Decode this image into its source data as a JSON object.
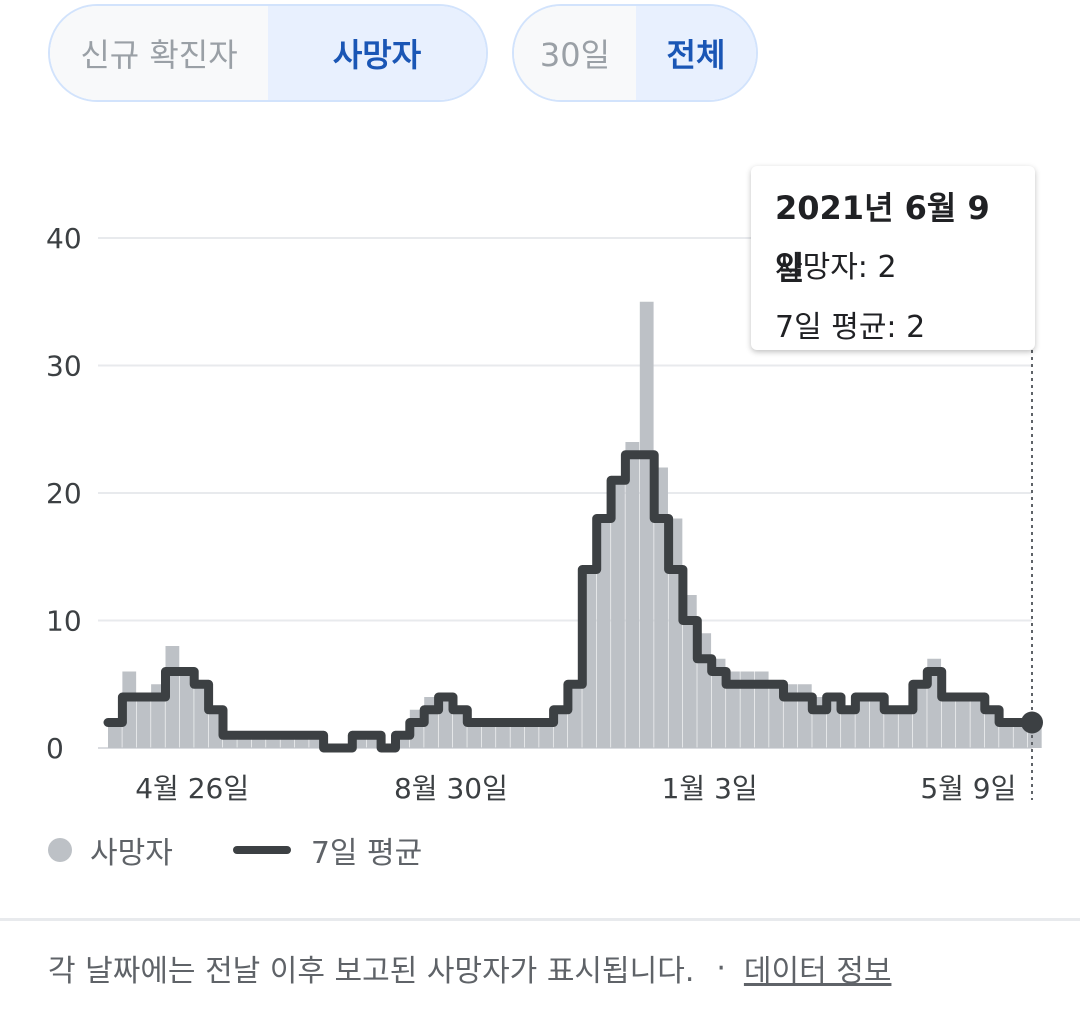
{
  "toggles": {
    "metric": [
      {
        "label": "신규 확진자",
        "selected": false
      },
      {
        "label": "사망자",
        "selected": true
      }
    ],
    "range": [
      {
        "label": "30일",
        "selected": false
      },
      {
        "label": "전체",
        "selected": true
      }
    ]
  },
  "tooltip": {
    "date": "2021년 6월 9일",
    "deaths_line": "사망자: 2",
    "avg_line": "7일 평균: 2"
  },
  "legend": {
    "bars_label": "사망자",
    "line_label": "7일 평균"
  },
  "footer": {
    "note": "각 날짜에는 전날 이후 보고된 사망자가 표시됩니다.",
    "separator": "·",
    "link": "데이터 정보"
  },
  "colors": {
    "bar": "#bdc1c6",
    "line": "#3c4043",
    "grid": "#e8eaed",
    "accent": "#1a56b5"
  },
  "chart_data": {
    "type": "bar",
    "title": "",
    "xlabel": "",
    "ylabel": "",
    "ylim": [
      0,
      40
    ],
    "y_ticks": [
      0,
      10,
      20,
      30,
      40
    ],
    "x_tick_labels": [
      {
        "label": "4월 26일",
        "date": "2020-04-26"
      },
      {
        "label": "8월 30일",
        "date": "2020-08-30"
      },
      {
        "label": "1월 3일",
        "date": "2021-01-03"
      },
      {
        "label": "5월 9일",
        "date": "2021-05-09"
      }
    ],
    "grid": true,
    "legend": "bottom",
    "series": [
      {
        "name": "사망자",
        "type": "bar",
        "x": [
          "2020-03-16",
          "2020-03-23",
          "2020-03-30",
          "2020-04-06",
          "2020-04-13",
          "2020-04-20",
          "2020-04-27",
          "2020-05-04",
          "2020-05-11",
          "2020-05-18",
          "2020-05-25",
          "2020-06-01",
          "2020-06-08",
          "2020-06-15",
          "2020-06-22",
          "2020-06-29",
          "2020-07-06",
          "2020-07-13",
          "2020-07-20",
          "2020-07-27",
          "2020-08-03",
          "2020-08-10",
          "2020-08-17",
          "2020-08-24",
          "2020-08-31",
          "2020-09-07",
          "2020-09-14",
          "2020-09-21",
          "2020-09-28",
          "2020-10-05",
          "2020-10-12",
          "2020-10-19",
          "2020-10-26",
          "2020-11-02",
          "2020-11-09",
          "2020-11-16",
          "2020-11-23",
          "2020-11-30",
          "2020-12-07",
          "2020-12-14",
          "2020-12-21",
          "2020-12-28",
          "2021-01-04",
          "2021-01-11",
          "2021-01-18",
          "2021-01-25",
          "2021-02-01",
          "2021-02-08",
          "2021-02-15",
          "2021-02-22",
          "2021-03-01",
          "2021-03-08",
          "2021-03-15",
          "2021-03-22",
          "2021-03-29",
          "2021-04-05",
          "2021-04-12",
          "2021-04-19",
          "2021-04-26",
          "2021-05-03",
          "2021-05-10",
          "2021-05-17",
          "2021-05-24",
          "2021-05-31",
          "2021-06-07"
        ],
        "values": [
          2,
          6,
          4,
          5,
          8,
          6,
          5,
          3,
          1,
          1,
          1,
          1,
          1,
          1,
          1,
          0,
          0,
          1,
          1,
          0,
          1,
          3,
          4,
          4,
          3,
          2,
          2,
          2,
          2,
          2,
          2,
          3,
          5,
          14,
          18,
          21,
          24,
          35,
          22,
          18,
          12,
          9,
          7,
          6,
          6,
          6,
          5,
          5,
          5,
          4,
          4,
          3,
          4,
          4,
          3,
          3,
          5,
          7,
          4,
          4,
          4,
          3,
          2,
          2,
          2
        ]
      },
      {
        "name": "7일 평균",
        "type": "line",
        "x": [
          "2020-03-16",
          "2020-03-23",
          "2020-03-30",
          "2020-04-06",
          "2020-04-13",
          "2020-04-20",
          "2020-04-27",
          "2020-05-04",
          "2020-05-11",
          "2020-05-18",
          "2020-05-25",
          "2020-06-01",
          "2020-06-08",
          "2020-06-15",
          "2020-06-22",
          "2020-06-29",
          "2020-07-06",
          "2020-07-13",
          "2020-07-20",
          "2020-07-27",
          "2020-08-03",
          "2020-08-10",
          "2020-08-17",
          "2020-08-24",
          "2020-08-31",
          "2020-09-07",
          "2020-09-14",
          "2020-09-21",
          "2020-09-28",
          "2020-10-05",
          "2020-10-12",
          "2020-10-19",
          "2020-10-26",
          "2020-11-02",
          "2020-11-09",
          "2020-11-16",
          "2020-11-23",
          "2020-11-30",
          "2020-12-07",
          "2020-12-14",
          "2020-12-21",
          "2020-12-28",
          "2021-01-04",
          "2021-01-11",
          "2021-01-18",
          "2021-01-25",
          "2021-02-01",
          "2021-02-08",
          "2021-02-15",
          "2021-02-22",
          "2021-03-01",
          "2021-03-08",
          "2021-03-15",
          "2021-03-22",
          "2021-03-29",
          "2021-04-05",
          "2021-04-12",
          "2021-04-19",
          "2021-04-26",
          "2021-05-03",
          "2021-05-10",
          "2021-05-17",
          "2021-05-24",
          "2021-05-31",
          "2021-06-07",
          "2021-06-09"
        ],
        "values": [
          2,
          4,
          4,
          4,
          6,
          6,
          5,
          3,
          1,
          1,
          1,
          1,
          1,
          1,
          1,
          0,
          0,
          1,
          1,
          0,
          1,
          2,
          3,
          4,
          3,
          2,
          2,
          2,
          2,
          2,
          2,
          3,
          5,
          14,
          18,
          21,
          23,
          23,
          18,
          14,
          10,
          7,
          6,
          5,
          5,
          5,
          5,
          4,
          4,
          3,
          4,
          3,
          4,
          4,
          3,
          3,
          5,
          6,
          4,
          4,
          4,
          3,
          2,
          2,
          2,
          2
        ]
      }
    ],
    "highlight": {
      "date": "2021-06-09",
      "deaths": 2,
      "avg": 2
    }
  }
}
